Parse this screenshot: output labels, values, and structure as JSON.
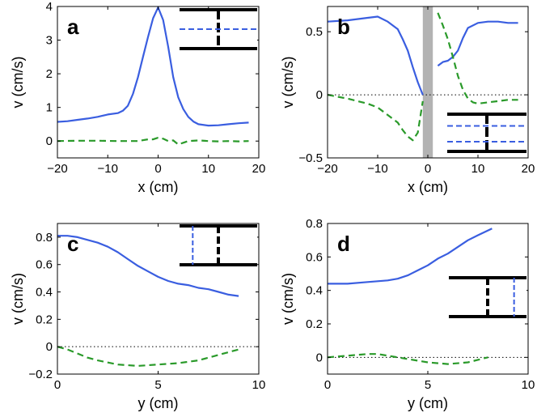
{
  "chart_data": [
    {
      "type": "line",
      "panel_label": "a",
      "xlabel": "x (cm)",
      "ylabel": "v (cm/s)",
      "xlim": [
        -20,
        20
      ],
      "ylim": [
        -0.5,
        4
      ],
      "xticks": [
        -20,
        -10,
        0,
        10,
        20
      ],
      "yticks": [
        0,
        1,
        2,
        3,
        4
      ],
      "zero_line": false,
      "series": [
        {
          "name": "blue-solid",
          "color": "#3a5ee0",
          "dash": "solid",
          "x": [
            -20,
            -18,
            -16,
            -14,
            -12,
            -10,
            -8,
            -7,
            -6,
            -5,
            -4,
            -3,
            -2,
            -1,
            0,
            1,
            2,
            3,
            4,
            5,
            6,
            7,
            8,
            10,
            12,
            14,
            16,
            18
          ],
          "y": [
            0.57,
            0.59,
            0.63,
            0.67,
            0.72,
            0.79,
            0.83,
            0.9,
            1.05,
            1.4,
            1.9,
            2.5,
            3.1,
            3.65,
            3.97,
            3.6,
            2.8,
            1.9,
            1.3,
            0.95,
            0.72,
            0.58,
            0.5,
            0.46,
            0.47,
            0.5,
            0.53,
            0.55
          ]
        },
        {
          "name": "green-dashed",
          "color": "#2a9a2a",
          "dash": "dashed",
          "x": [
            -20,
            -16,
            -12,
            -8,
            -6,
            -4,
            -2,
            -1,
            0,
            1,
            2,
            3,
            4,
            5,
            6,
            8,
            10,
            12,
            14,
            16,
            18
          ],
          "y": [
            0.0,
            0.01,
            0.01,
            0.0,
            0.0,
            0.0,
            0.05,
            0.05,
            0.1,
            0.07,
            0.0,
            0.02,
            -0.1,
            -0.05,
            0.0,
            0.02,
            0.0,
            -0.01,
            0.0,
            -0.01,
            0.0
          ]
        }
      ],
      "inset": {
        "type": "channel",
        "position": "top-right",
        "dashed_lines": "horizontal",
        "count": 1
      }
    },
    {
      "type": "line",
      "panel_label": "b",
      "xlabel": "x (cm)",
      "ylabel": "v (cm/s)",
      "xlim": [
        -20,
        20
      ],
      "ylim": [
        -0.5,
        0.7
      ],
      "xticks": [
        -20,
        -10,
        0,
        10,
        20
      ],
      "yticks": [
        -0.5,
        0,
        0.5
      ],
      "ytick_labels": [
        "−0.5",
        "0",
        "0.5"
      ],
      "zero_line": true,
      "shaded_band": [
        -1,
        1
      ],
      "series": [
        {
          "name": "blue-solid-left",
          "color": "#3a5ee0",
          "dash": "solid",
          "x": [
            -20,
            -16,
            -12,
            -10,
            -8,
            -6,
            -5,
            -4,
            -3,
            -2,
            -1
          ],
          "y": [
            0.58,
            0.59,
            0.61,
            0.62,
            0.58,
            0.52,
            0.44,
            0.35,
            0.22,
            0.1,
            0.0
          ]
        },
        {
          "name": "blue-solid-right",
          "color": "#3a5ee0",
          "dash": "solid",
          "x": [
            2,
            3,
            4,
            5,
            6,
            7,
            8,
            10,
            12,
            14,
            16,
            18
          ],
          "y": [
            0.23,
            0.26,
            0.27,
            0.3,
            0.35,
            0.45,
            0.53,
            0.57,
            0.58,
            0.58,
            0.57,
            0.57
          ]
        },
        {
          "name": "green-dashed-left",
          "color": "#2a9a2a",
          "dash": "dashed",
          "x": [
            -20,
            -16,
            -12,
            -10,
            -8,
            -6,
            -5,
            -4,
            -3,
            -2,
            -1
          ],
          "y": [
            0.0,
            -0.03,
            -0.07,
            -0.1,
            -0.16,
            -0.22,
            -0.28,
            -0.33,
            -0.36,
            -0.3,
            -0.05
          ]
        },
        {
          "name": "green-dashed-right",
          "color": "#2a9a2a",
          "dash": "dashed",
          "x": [
            2,
            3,
            4,
            5,
            6,
            7,
            8,
            9,
            10,
            12,
            14,
            16,
            18
          ],
          "y": [
            0.65,
            0.55,
            0.44,
            0.3,
            0.15,
            0.04,
            -0.03,
            -0.06,
            -0.07,
            -0.06,
            -0.05,
            -0.04,
            -0.04
          ]
        }
      ],
      "inset": {
        "type": "channel",
        "position": "bottom-right",
        "dashed_lines": "horizontal",
        "count": 2
      }
    },
    {
      "type": "line",
      "panel_label": "c",
      "xlabel": "y (cm)",
      "ylabel": "v (cm/s)",
      "xlim": [
        0,
        10
      ],
      "ylim": [
        -0.2,
        0.9
      ],
      "xticks": [
        0,
        5,
        10
      ],
      "yticks": [
        -0.2,
        0,
        0.2,
        0.4,
        0.6,
        0.8
      ],
      "ytick_labels": [
        "−0.2",
        "0",
        "0.2",
        "0.4",
        "0.6",
        "0.8"
      ],
      "zero_line": true,
      "series": [
        {
          "name": "blue-solid",
          "color": "#3a5ee0",
          "dash": "solid",
          "x": [
            0,
            0.5,
            1,
            1.5,
            2,
            2.5,
            3,
            3.5,
            4,
            4.5,
            5,
            5.5,
            6,
            6.5,
            7,
            7.5,
            8,
            8.5,
            9
          ],
          "y": [
            0.81,
            0.81,
            0.8,
            0.78,
            0.76,
            0.73,
            0.69,
            0.64,
            0.59,
            0.55,
            0.51,
            0.48,
            0.46,
            0.45,
            0.43,
            0.42,
            0.4,
            0.38,
            0.37
          ]
        },
        {
          "name": "green-dashed",
          "color": "#2a9a2a",
          "dash": "dashed",
          "x": [
            0,
            0.5,
            1,
            1.5,
            2,
            3,
            4,
            5,
            6,
            7,
            8,
            9
          ],
          "y": [
            0.0,
            -0.02,
            -0.05,
            -0.08,
            -0.1,
            -0.13,
            -0.14,
            -0.13,
            -0.12,
            -0.1,
            -0.06,
            -0.02
          ]
        }
      ],
      "inset": {
        "type": "channel",
        "position": "top-right",
        "dashed_lines": "vertical",
        "count": 1
      }
    },
    {
      "type": "line",
      "panel_label": "d",
      "xlabel": "y (cm)",
      "ylabel": "v (cm/s)",
      "xlim": [
        0,
        10
      ],
      "ylim": [
        -0.1,
        0.8
      ],
      "xticks": [
        0,
        5,
        10
      ],
      "yticks": [
        0,
        0.2,
        0.4,
        0.6,
        0.8
      ],
      "zero_line": true,
      "series": [
        {
          "name": "blue-solid",
          "color": "#3a5ee0",
          "dash": "solid",
          "x": [
            0,
            1,
            2,
            3,
            3.5,
            4,
            4.5,
            5,
            5.5,
            6,
            6.5,
            7,
            7.5,
            8.2
          ],
          "y": [
            0.44,
            0.44,
            0.45,
            0.46,
            0.47,
            0.49,
            0.52,
            0.55,
            0.59,
            0.62,
            0.66,
            0.7,
            0.73,
            0.77
          ]
        },
        {
          "name": "green-dashed",
          "color": "#2a9a2a",
          "dash": "dashed",
          "x": [
            0,
            1,
            2,
            2.5,
            3,
            4,
            5,
            6,
            7,
            8
          ],
          "y": [
            0.0,
            0.01,
            0.02,
            0.02,
            0.01,
            -0.01,
            -0.03,
            -0.04,
            -0.03,
            0.0
          ]
        }
      ],
      "inset": {
        "type": "channel",
        "position": "right",
        "dashed_lines": "vertical",
        "count": 1
      }
    }
  ]
}
